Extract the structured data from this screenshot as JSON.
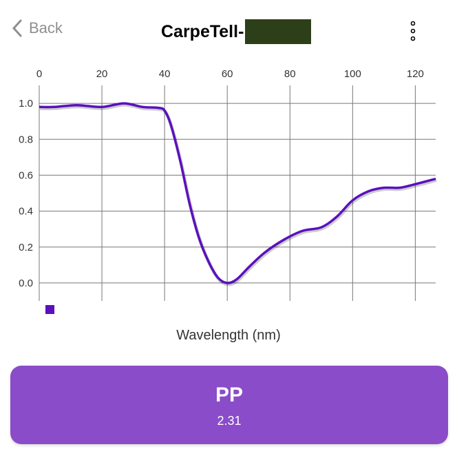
{
  "header": {
    "back_label": "Back",
    "title": "CarpeTell-"
  },
  "chart_data": {
    "type": "line",
    "xlabel": "Wavelength (nm)",
    "ylabel": "",
    "xlim": [
      0,
      126.5
    ],
    "ylim": [
      -0.1,
      1.1
    ],
    "xticks": [
      0,
      20,
      40,
      60,
      80,
      100,
      120
    ],
    "yticks": [
      0.0,
      0.2,
      0.4,
      0.6,
      0.8,
      1.0
    ],
    "ytick_labels": [
      "0.0",
      "0.2",
      "0.4",
      "0.6",
      "0.8",
      "1.0"
    ],
    "grid": true,
    "legend": "bottom-left",
    "color": "#5a10be",
    "series": [
      {
        "name": "",
        "x": [
          0,
          5,
          12,
          20,
          27,
          33,
          38,
          40,
          42,
          45,
          48,
          51,
          54,
          57,
          60,
          63,
          67,
          72,
          78,
          84,
          90,
          95,
          100,
          105,
          110,
          115,
          120,
          126.5
        ],
        "y": [
          0.98,
          0.98,
          0.99,
          0.98,
          1.0,
          0.98,
          0.975,
          0.96,
          0.88,
          0.68,
          0.44,
          0.25,
          0.12,
          0.03,
          0.0,
          0.02,
          0.09,
          0.17,
          0.24,
          0.29,
          0.31,
          0.37,
          0.46,
          0.51,
          0.53,
          0.53,
          0.55,
          0.58
        ]
      }
    ]
  },
  "action": {
    "label": "PP",
    "value": "2.31"
  },
  "colors": {
    "button": "#8a4cc8",
    "line": "#5a10be"
  }
}
